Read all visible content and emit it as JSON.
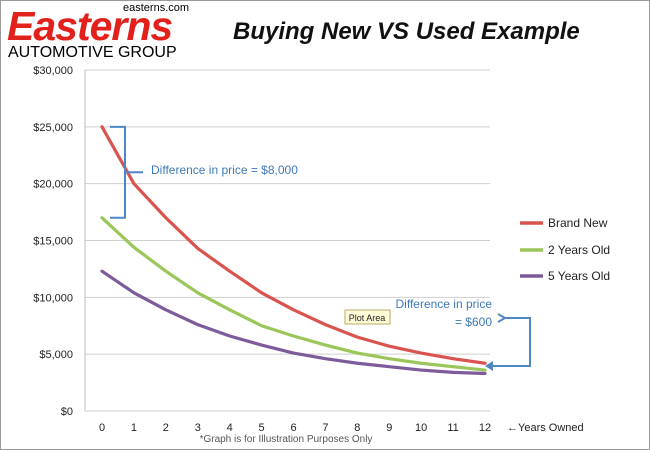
{
  "brand": {
    "url": "easterns.com",
    "name": "Easterns",
    "subtitle": "AUTOMOTIVE GROUP",
    "color": "#e3211c"
  },
  "footnote": "*Graph is for Illustration Purposes Only",
  "chart_data": {
    "type": "line",
    "title": "Buying New VS Used Example",
    "xlabel": "Years Owned",
    "xlabel_prefix": "←",
    "ylabel": "",
    "x": [
      0,
      1,
      2,
      3,
      4,
      5,
      6,
      7,
      8,
      9,
      10,
      11,
      12
    ],
    "x_ticks": [
      "0",
      "1",
      "2",
      "3",
      "4",
      "5",
      "6",
      "7",
      "8",
      "9",
      "10",
      "11",
      "12"
    ],
    "ylim": [
      0,
      30000
    ],
    "y_ticks": [
      "$0",
      "$5,000",
      "$10,000",
      "$15,000",
      "$20,000",
      "$25,000",
      "$30,000"
    ],
    "y_tick_values": [
      0,
      5000,
      10000,
      15000,
      20000,
      25000,
      30000
    ],
    "grid": "horizontal",
    "legend_position": "right",
    "series": [
      {
        "name": "Brand New",
        "color": "#d9534f",
        "values": [
          25000,
          20000,
          17000,
          14300,
          12300,
          10400,
          8900,
          7600,
          6500,
          5700,
          5100,
          4600,
          4200
        ]
      },
      {
        "name": "2 Years Old",
        "color": "#9bc65a",
        "values": [
          17000,
          14400,
          12300,
          10400,
          8900,
          7500,
          6600,
          5800,
          5100,
          4600,
          4200,
          3900,
          3600
        ]
      },
      {
        "name": "5 Years Old",
        "color": "#7e5b9a",
        "values": [
          12300,
          10400,
          8900,
          7600,
          6600,
          5800,
          5100,
          4600,
          4200,
          3900,
          3600,
          3400,
          3300
        ]
      }
    ],
    "annotations": [
      {
        "text": "Difference in price = $8,000",
        "from": 25000,
        "to": 17000,
        "x": 0
      },
      {
        "text_line1": "Difference in price",
        "text_line2": "= $600",
        "from": 4200,
        "to": 3600,
        "x": 12
      }
    ],
    "tooltip": "Plot Area"
  }
}
